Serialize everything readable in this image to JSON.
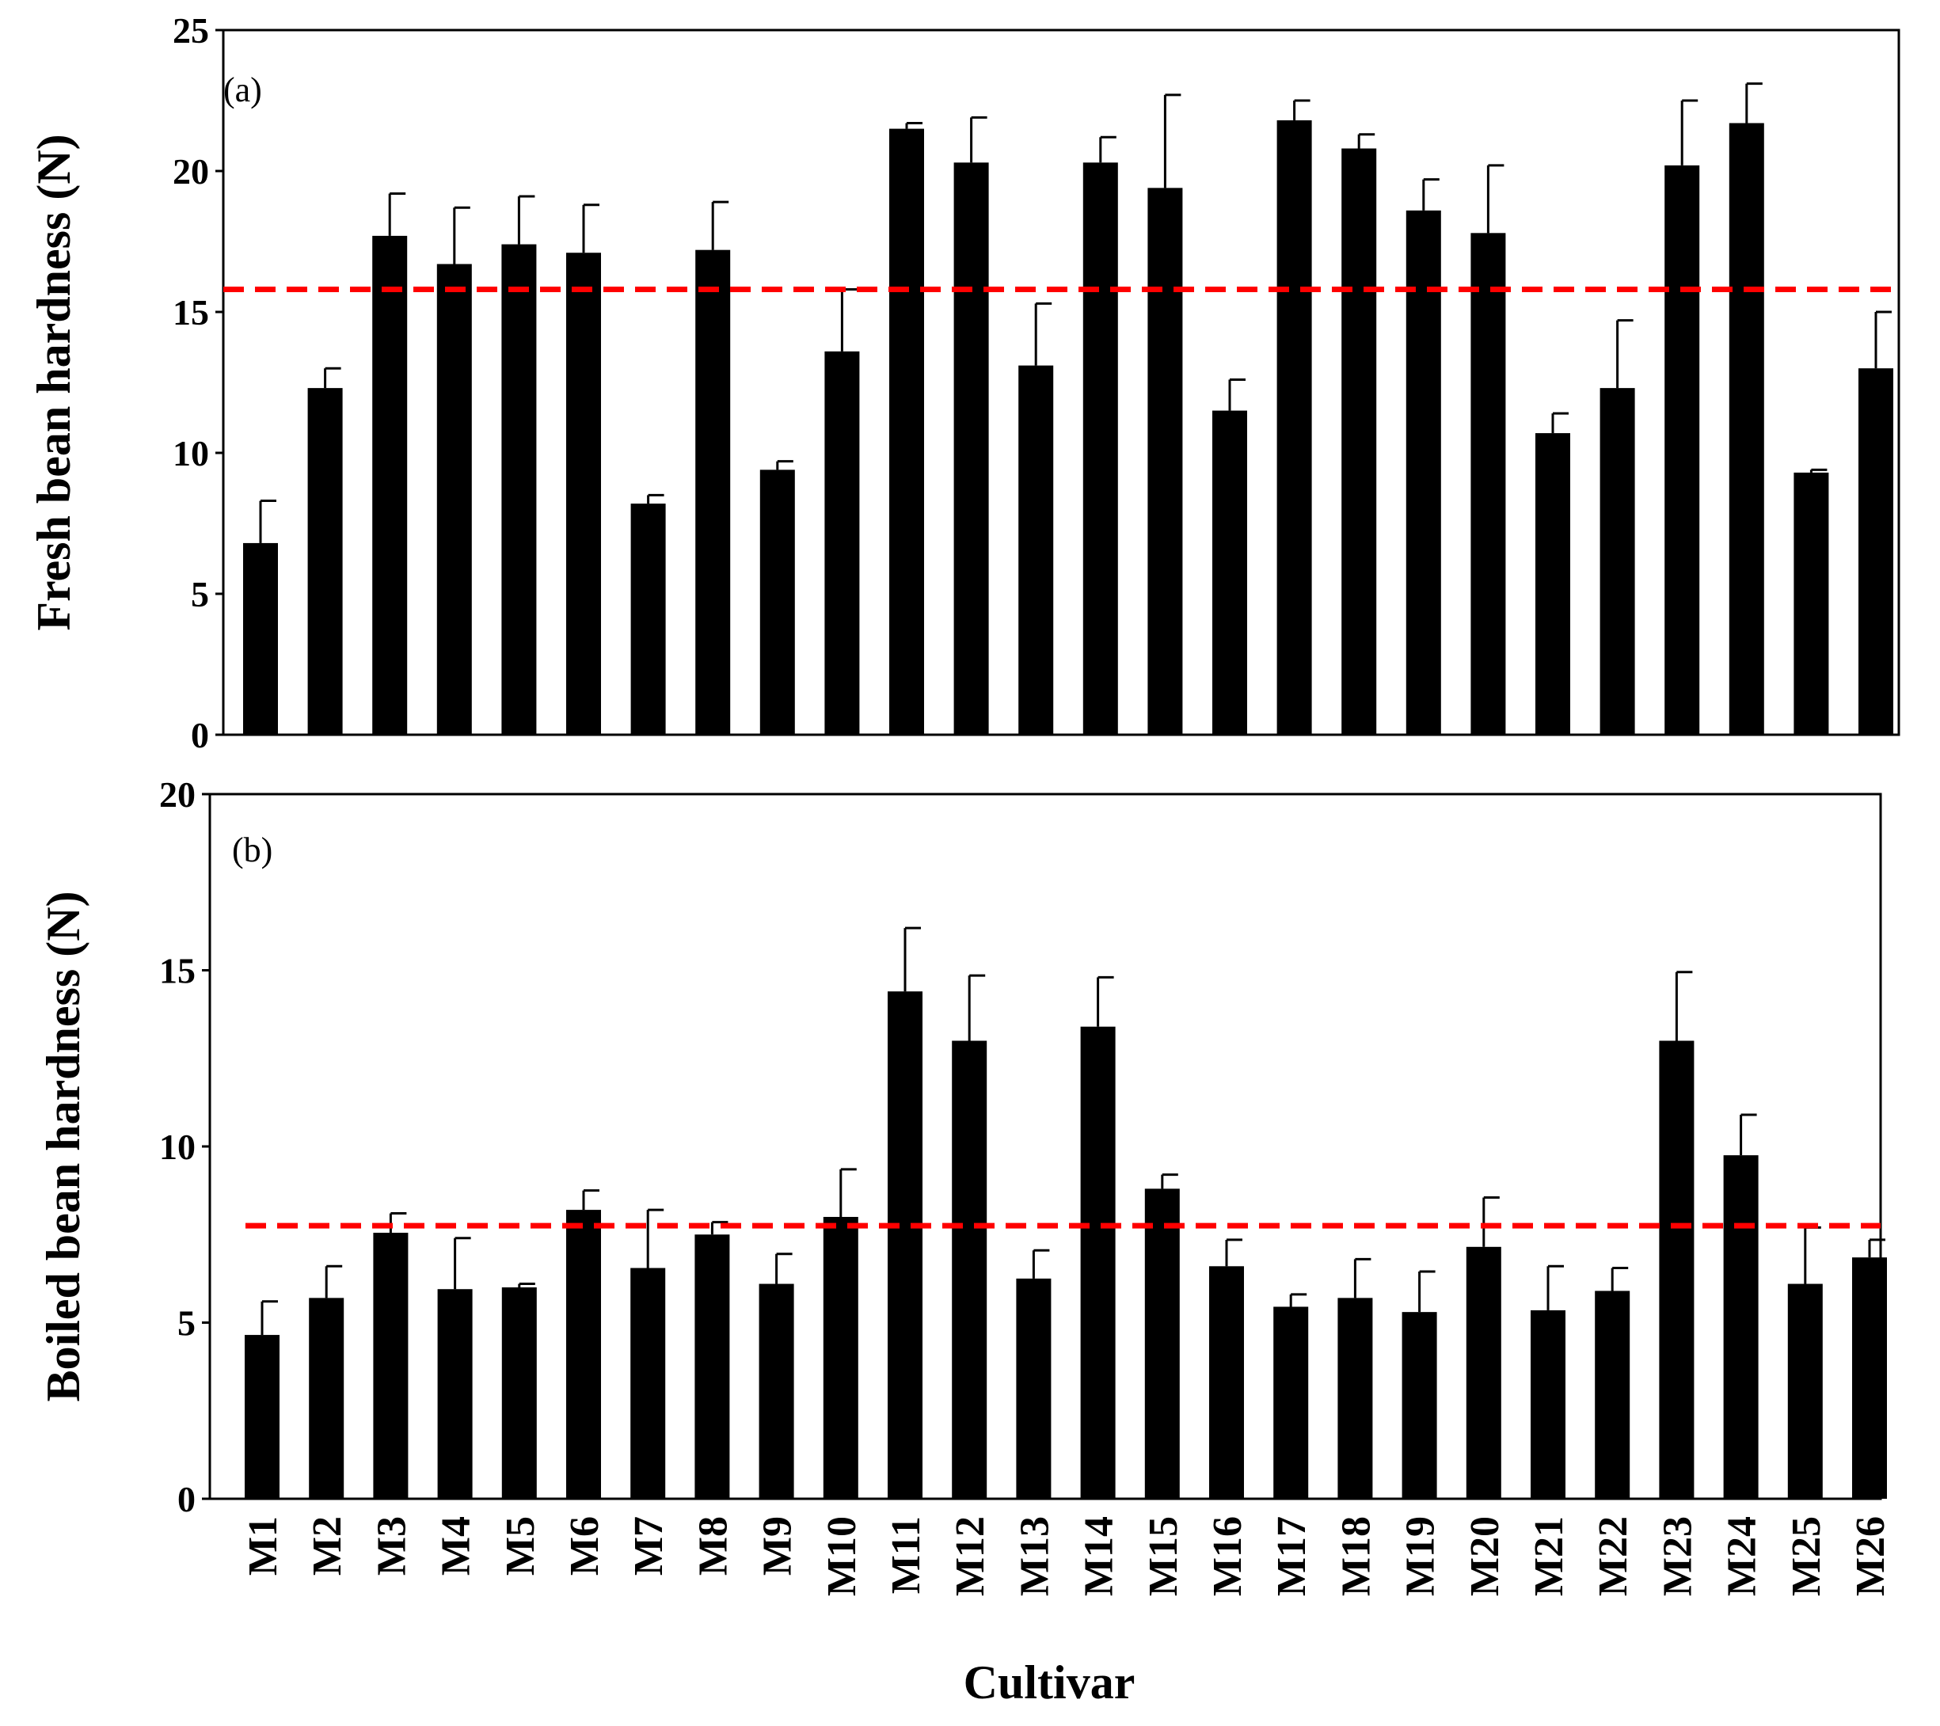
{
  "chart_data": [
    {
      "type": "bar",
      "panel_label": "(a)",
      "ylabel": "Fresh bean hardness (N)",
      "xlabel": "",
      "ylim": [
        0,
        25
      ],
      "yticks": [
        "0",
        "5",
        "10",
        "15",
        "20",
        "25"
      ],
      "reference_line": 15.8,
      "reference_color": "#ff0000",
      "bar_color": "#000000",
      "categories": [
        "M1",
        "M2",
        "M3",
        "M4",
        "M5",
        "M6",
        "M7",
        "M8",
        "M9",
        "M10",
        "M11",
        "M12",
        "M13",
        "M14",
        "M15",
        "M16",
        "M17",
        "M18",
        "M19",
        "M20",
        "M21",
        "M22",
        "M23",
        "M24",
        "M25",
        "M26"
      ],
      "values": [
        6.8,
        12.3,
        17.7,
        16.7,
        17.4,
        17.1,
        8.2,
        17.2,
        9.4,
        13.6,
        21.5,
        20.3,
        13.1,
        20.3,
        19.4,
        11.5,
        21.8,
        20.8,
        18.6,
        17.8,
        10.7,
        12.3,
        20.2,
        21.7,
        9.3,
        13.0
      ],
      "errors": [
        1.5,
        0.7,
        1.5,
        2.0,
        1.7,
        1.7,
        0.3,
        1.7,
        0.3,
        2.2,
        0.2,
        1.6,
        2.2,
        0.9,
        3.3,
        1.1,
        0.7,
        0.5,
        1.1,
        2.4,
        0.7,
        2.4,
        2.3,
        1.4,
        0.1,
        2.0
      ]
    },
    {
      "type": "bar",
      "panel_label": "(b)",
      "ylabel": "Boiled bean hardness (N)",
      "xlabel": "Cultivar",
      "ylim": [
        0,
        20
      ],
      "yticks": [
        "0",
        "5",
        "10",
        "15",
        "20"
      ],
      "reference_line": 7.75,
      "reference_color": "#ff0000",
      "bar_color": "#000000",
      "categories": [
        "M1",
        "M2",
        "M3",
        "M4",
        "M5",
        "M6",
        "M7",
        "M8",
        "M9",
        "M10",
        "M11",
        "M12",
        "M13",
        "M14",
        "M15",
        "M16",
        "M17",
        "M18",
        "M19",
        "M20",
        "M21",
        "M22",
        "M23",
        "M24",
        "M25",
        "M26"
      ],
      "values": [
        4.65,
        5.7,
        7.55,
        5.95,
        6.0,
        8.2,
        6.55,
        7.5,
        6.1,
        8.0,
        14.4,
        13.0,
        6.25,
        13.4,
        8.8,
        6.6,
        5.45,
        5.7,
        5.3,
        7.15,
        5.35,
        5.9,
        13.0,
        9.75,
        6.1,
        6.85
      ],
      "errors": [
        0.95,
        0.9,
        0.55,
        1.45,
        0.1,
        0.55,
        1.65,
        0.35,
        0.85,
        1.35,
        1.8,
        1.85,
        0.8,
        1.4,
        0.4,
        0.75,
        0.35,
        1.1,
        1.15,
        1.4,
        1.25,
        0.65,
        1.95,
        1.15,
        1.6,
        0.5
      ]
    }
  ]
}
